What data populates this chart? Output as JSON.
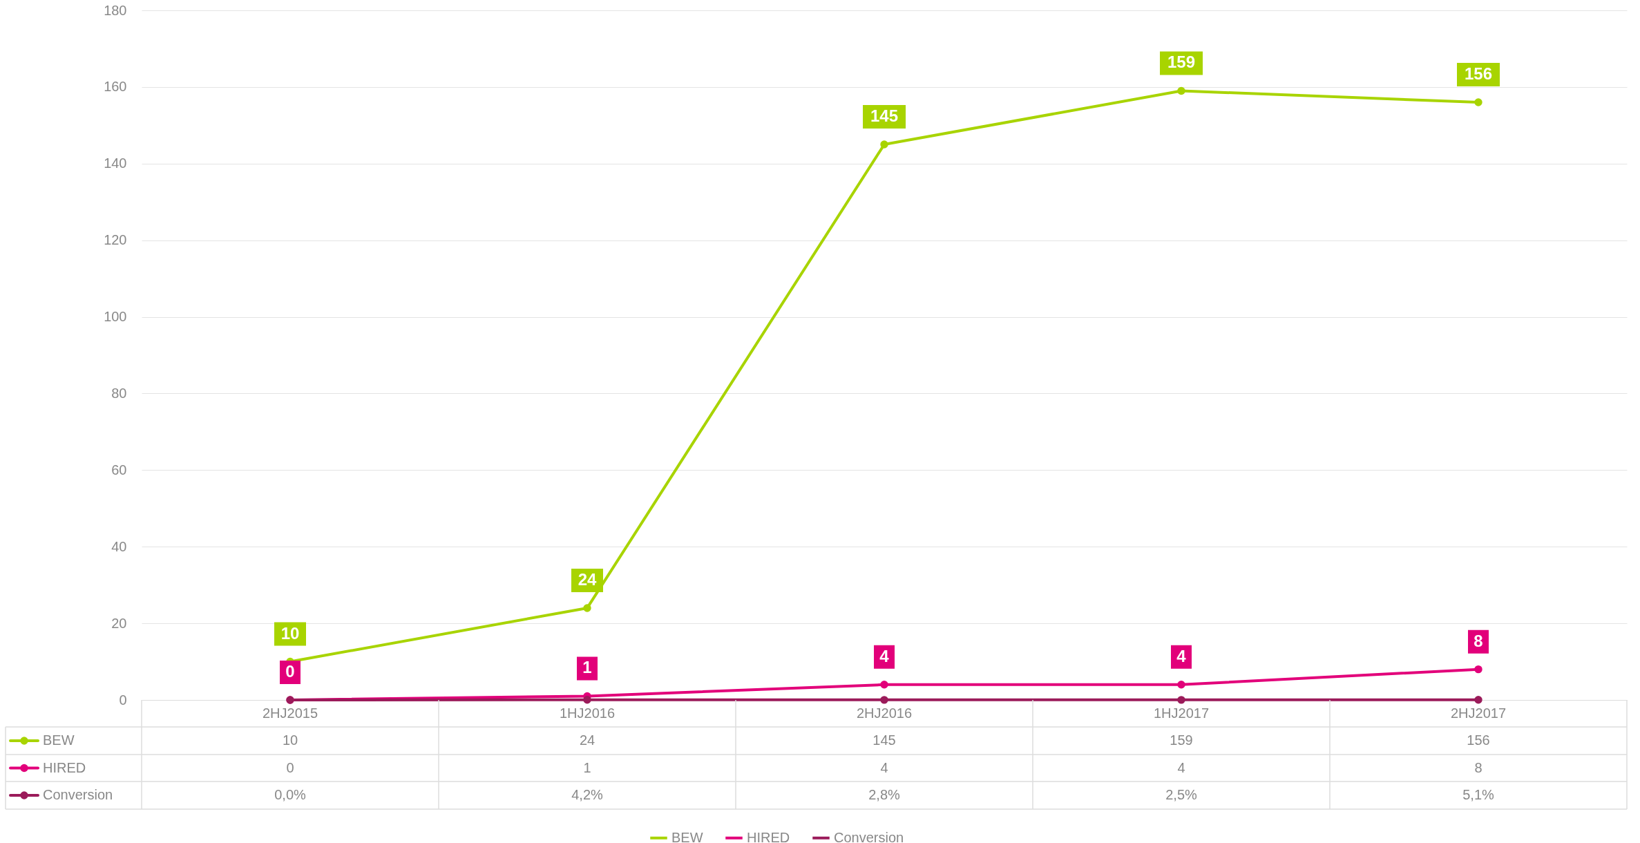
{
  "chart_data": {
    "type": "line",
    "categories": [
      "2HJ2015",
      "1HJ2016",
      "2HJ2016",
      "1HJ2017",
      "2HJ2017"
    ],
    "series": [
      {
        "name": "BEW",
        "color": "#a8d400",
        "values": [
          10,
          24,
          145,
          159,
          156
        ],
        "value_labels": [
          "10",
          "24",
          "145",
          "159",
          "156"
        ]
      },
      {
        "name": "HIRED",
        "color": "#e2007a",
        "values": [
          0,
          1,
          4,
          4,
          8
        ],
        "value_labels": [
          "0",
          "1",
          "4",
          "4",
          "8"
        ]
      },
      {
        "name": "Conversion",
        "color": "#9b1b5a",
        "values": [
          0,
          0.042,
          0.028,
          0.025,
          0.051
        ],
        "value_labels": [
          "0,0%",
          "4,2%",
          "2,8%",
          "2,5%",
          "5,1%"
        ]
      }
    ],
    "ylim": [
      0,
      180
    ],
    "yticks": [
      0,
      20,
      40,
      60,
      80,
      100,
      120,
      140,
      160,
      180
    ],
    "grid": "y",
    "legend": "bottom",
    "marker": "circle",
    "line_style": "solid",
    "data_labels": true
  }
}
